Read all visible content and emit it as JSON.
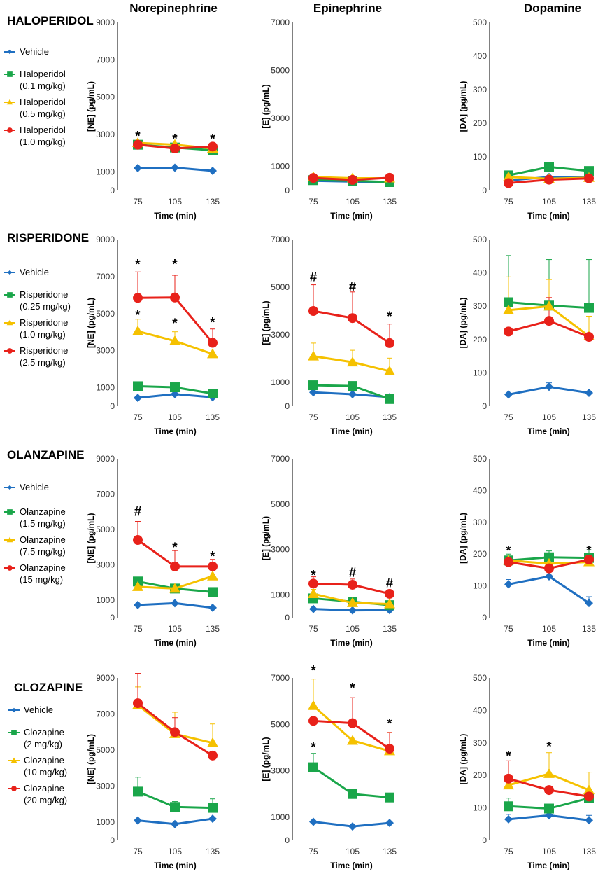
{
  "columns": [
    "Norepinephrine",
    "Epinephrine",
    "Dopamine"
  ],
  "colors": {
    "Vehicle": "#1f6fc1",
    "Low": "#1aa64a",
    "Mid": "#f5c100",
    "High": "#e8211a"
  },
  "markers": [
    "diamond",
    "square",
    "triangle",
    "circle"
  ],
  "xlabel": "Time (min)",
  "panels": [
    {
      "drug": "HALOPERIDOL",
      "legend": [
        {
          "line1": "Vehicle",
          "line2": ""
        },
        {
          "line1": "Haloperidol",
          "line2": "(0.1 mg/kg)"
        },
        {
          "line1": "Haloperidol",
          "line2": "(0.5 mg/kg)"
        },
        {
          "line1": "Haloperidol",
          "line2": "(1.0 mg/kg)"
        }
      ]
    },
    {
      "drug": "RISPERIDONE",
      "legend": [
        {
          "line1": "Vehicle",
          "line2": ""
        },
        {
          "line1": "Risperidone",
          "line2": "(0.25 mg/kg)"
        },
        {
          "line1": "Risperidone",
          "line2": "(1.0 mg/kg)"
        },
        {
          "line1": "Risperidone",
          "line2": "(2.5 mg/kg)"
        }
      ]
    },
    {
      "drug": "OLANZAPINE",
      "legend": [
        {
          "line1": "Vehicle",
          "line2": ""
        },
        {
          "line1": "Olanzapine",
          "line2": "(1.5 mg/kg)"
        },
        {
          "line1": "Olanzapine",
          "line2": "(7.5 mg/kg)"
        },
        {
          "line1": "Olanzapine",
          "line2": "(15 mg/kg)"
        }
      ]
    },
    {
      "drug": "CLOZAPINE",
      "legend": [
        {
          "line1": "Vehicle",
          "line2": ""
        },
        {
          "line1": "Clozapine",
          "line2": "(2 mg/kg)"
        },
        {
          "line1": "Clozapine",
          "line2": "(10 mg/kg)"
        },
        {
          "line1": "Clozapine",
          "line2": "(20 mg/kg)"
        }
      ]
    }
  ],
  "chart_data": [
    {
      "type": "line",
      "drug": "Haloperidol",
      "analyte": "Norepinephrine",
      "ylabel": "[NE] (pg/mL)",
      "xlabel": "Time (min)",
      "x": [
        75,
        105,
        135
      ],
      "ylim": [
        0,
        9000
      ],
      "yticks": [
        0,
        1000,
        3000,
        5000,
        7000,
        9000
      ],
      "series": [
        {
          "name": "Vehicle",
          "values": [
            1200,
            1220,
            1050
          ],
          "err": [
            0,
            0,
            0
          ]
        },
        {
          "name": "Haloperidol (0.1 mg/kg)",
          "values": [
            2450,
            2300,
            2150
          ],
          "err": [
            0,
            0,
            0
          ]
        },
        {
          "name": "Haloperidol (0.5 mg/kg)",
          "values": [
            2550,
            2450,
            2250
          ],
          "err": [
            0,
            0,
            0
          ]
        },
        {
          "name": "Haloperidol (1.0 mg/kg)",
          "values": [
            2450,
            2250,
            2350
          ],
          "err": [
            0,
            0,
            0
          ]
        }
      ],
      "annotations": [
        {
          "x": 75,
          "text": "*",
          "y": 2950
        },
        {
          "x": 105,
          "text": "*",
          "y": 2800
        },
        {
          "x": 135,
          "text": "*",
          "y": 2800
        }
      ]
    },
    {
      "type": "line",
      "drug": "Haloperidol",
      "analyte": "Epinephrine",
      "ylabel": "[E] (pg/mL)",
      "xlabel": "Time (min)",
      "x": [
        75,
        105,
        135
      ],
      "ylim": [
        0,
        7000
      ],
      "yticks": [
        0,
        1000,
        3000,
        5000,
        7000
      ],
      "series": [
        {
          "name": "Vehicle",
          "values": [
            400,
            370,
            330
          ],
          "err": [
            0,
            0,
            0
          ]
        },
        {
          "name": "Haloperidol (0.1 mg/kg)",
          "values": [
            430,
            400,
            350
          ],
          "err": [
            0,
            0,
            0
          ]
        },
        {
          "name": "Haloperidol (0.5 mg/kg)",
          "values": [
            560,
            510,
            510
          ],
          "err": [
            0,
            0,
            0
          ]
        },
        {
          "name": "Haloperidol (1.0 mg/kg)",
          "values": [
            520,
            440,
            530
          ],
          "err": [
            0,
            0,
            0
          ]
        }
      ],
      "annotations": []
    },
    {
      "type": "line",
      "drug": "Haloperidol",
      "analyte": "Dopamine",
      "ylabel": "[DA] (pg/mL)",
      "xlabel": "Time (min)",
      "x": [
        75,
        105,
        135
      ],
      "ylim": [
        0,
        500
      ],
      "yticks": [
        0,
        100,
        200,
        300,
        400,
        500
      ],
      "series": [
        {
          "name": "Vehicle",
          "values": [
            30,
            40,
            40
          ],
          "err": [
            0,
            0,
            0
          ]
        },
        {
          "name": "Haloperidol (0.1 mg/kg)",
          "values": [
            45,
            70,
            58
          ],
          "err": [
            0,
            0,
            0
          ]
        },
        {
          "name": "Haloperidol (0.5 mg/kg)",
          "values": [
            40,
            35,
            38
          ],
          "err": [
            0,
            0,
            0
          ]
        },
        {
          "name": "Haloperidol (1.0 mg/kg)",
          "values": [
            22,
            32,
            36
          ],
          "err": [
            0,
            0,
            0
          ]
        }
      ],
      "annotations": []
    },
    {
      "type": "line",
      "drug": "Risperidone",
      "analyte": "Norepinephrine",
      "ylabel": "[NE] (pg/mL)",
      "xlabel": "Time (min)",
      "x": [
        75,
        105,
        135
      ],
      "ylim": [
        0,
        9000
      ],
      "yticks": [
        0,
        1000,
        3000,
        5000,
        7000,
        9000
      ],
      "series": [
        {
          "name": "Vehicle",
          "values": [
            450,
            650,
            480
          ],
          "err": [
            0,
            0,
            0
          ]
        },
        {
          "name": "Risperidone (0.25 mg/kg)",
          "values": [
            1080,
            1020,
            680
          ],
          "err": [
            200,
            200,
            0
          ]
        },
        {
          "name": "Risperidone (1.0 mg/kg)",
          "values": [
            4050,
            3520,
            2820
          ],
          "err": [
            650,
            500,
            0
          ]
        },
        {
          "name": "Risperidone (2.5 mg/kg)",
          "values": [
            5850,
            5870,
            3420
          ],
          "err": [
            1400,
            1200,
            750
          ]
        }
      ],
      "annotations": [
        {
          "x": 75,
          "text": "*",
          "y": 7700
        },
        {
          "x": 105,
          "text": "*",
          "y": 7700
        },
        {
          "x": 135,
          "text": "*",
          "y": 4550
        },
        {
          "x": 75,
          "text": "*",
          "y": 4950
        },
        {
          "x": 105,
          "text": "*",
          "y": 4500
        }
      ]
    },
    {
      "type": "line",
      "drug": "Risperidone",
      "analyte": "Epinephrine",
      "ylabel": "[E] (pg/mL)",
      "xlabel": "Time (min)",
      "x": [
        75,
        105,
        135
      ],
      "ylim": [
        0,
        7000
      ],
      "yticks": [
        0,
        1000,
        3000,
        5000,
        7000
      ],
      "series": [
        {
          "name": "Vehicle",
          "values": [
            580,
            500,
            380
          ],
          "err": [
            0,
            0,
            0
          ]
        },
        {
          "name": "Risperidone (0.25 mg/kg)",
          "values": [
            880,
            850,
            300
          ],
          "err": [
            0,
            0,
            0
          ]
        },
        {
          "name": "Risperidone (1.0 mg/kg)",
          "values": [
            2100,
            1850,
            1470
          ],
          "err": [
            550,
            500,
            550
          ]
        },
        {
          "name": "Risperidone (2.5 mg/kg)",
          "values": [
            4000,
            3700,
            2650
          ],
          "err": [
            1100,
            1100,
            800
          ]
        }
      ],
      "annotations": [
        {
          "x": 75,
          "text": "#",
          "y": 5450
        },
        {
          "x": 105,
          "text": "#",
          "y": 5050
        },
        {
          "x": 135,
          "text": "*",
          "y": 3800
        }
      ]
    },
    {
      "type": "line",
      "drug": "Risperidone",
      "analyte": "Dopamine",
      "ylabel": "[DA] (pg/mL)",
      "xlabel": "Time (min)",
      "x": [
        75,
        105,
        135
      ],
      "ylim": [
        0,
        500
      ],
      "yticks": [
        0,
        100,
        200,
        300,
        400,
        500
      ],
      "series": [
        {
          "name": "Vehicle",
          "values": [
            35,
            58,
            40
          ],
          "err": [
            0,
            12,
            0
          ]
        },
        {
          "name": "Risperidone (0.25 mg/kg)",
          "values": [
            312,
            302,
            295
          ],
          "err": [
            140,
            138,
            145
          ]
        },
        {
          "name": "Risperidone (1.0 mg/kg)",
          "values": [
            288,
            300,
            210
          ],
          "err": [
            100,
            80,
            60
          ]
        },
        {
          "name": "Risperidone (2.5 mg/kg)",
          "values": [
            224,
            256,
            208
          ],
          "err": [
            0,
            70,
            0
          ]
        }
      ],
      "annotations": []
    },
    {
      "type": "line",
      "drug": "Olanzapine",
      "analyte": "Norepinephrine",
      "ylabel": "[NE] (pg/mL)",
      "xlabel": "Time (min)",
      "x": [
        75,
        105,
        135
      ],
      "ylim": [
        0,
        9000
      ],
      "yticks": [
        0,
        1000,
        3000,
        5000,
        7000,
        9000
      ],
      "series": [
        {
          "name": "Vehicle",
          "values": [
            720,
            820,
            560
          ],
          "err": [
            0,
            0,
            0
          ]
        },
        {
          "name": "Olanzapine (1.5 mg/kg)",
          "values": [
            2050,
            1650,
            1450
          ],
          "err": [
            250,
            250,
            0
          ]
        },
        {
          "name": "Olanzapine (7.5 mg/kg)",
          "values": [
            1750,
            1650,
            2350
          ],
          "err": [
            0,
            0,
            0
          ]
        },
        {
          "name": "Olanzapine (15 mg/kg)",
          "values": [
            4400,
            2900,
            2900
          ],
          "err": [
            1050,
            900,
            400
          ]
        }
      ],
      "annotations": [
        {
          "x": 75,
          "text": "#",
          "y": 6050
        },
        {
          "x": 105,
          "text": "*",
          "y": 4000
        },
        {
          "x": 135,
          "text": "*",
          "y": 3500
        }
      ]
    },
    {
      "type": "line",
      "drug": "Olanzapine",
      "analyte": "Epinephrine",
      "ylabel": "[E] (pg/mL)",
      "xlabel": "Time (min)",
      "x": [
        75,
        105,
        135
      ],
      "ylim": [
        0,
        7000
      ],
      "yticks": [
        0,
        1000,
        3000,
        5000,
        7000
      ],
      "series": [
        {
          "name": "Vehicle",
          "values": [
            380,
            320,
            330
          ],
          "err": [
            0,
            0,
            0
          ]
        },
        {
          "name": "Olanzapine (1.5 mg/kg)",
          "values": [
            850,
            700,
            550
          ],
          "err": [
            0,
            0,
            0
          ]
        },
        {
          "name": "Olanzapine (7.5 mg/kg)",
          "values": [
            1050,
            650,
            600
          ],
          "err": [
            200,
            150,
            0
          ]
        },
        {
          "name": "Olanzapine (15 mg/kg)",
          "values": [
            1500,
            1450,
            1050
          ],
          "err": [
            300,
            250,
            0
          ]
        }
      ],
      "annotations": [
        {
          "x": 75,
          "text": "*",
          "y": 1900
        },
        {
          "x": 105,
          "text": "#",
          "y": 2000
        },
        {
          "x": 135,
          "text": "#",
          "y": 1550
        }
      ]
    },
    {
      "type": "line",
      "drug": "Olanzapine",
      "analyte": "Dopamine",
      "ylabel": "[DA] (pg/mL)",
      "xlabel": "Time (min)",
      "x": [
        75,
        105,
        135
      ],
      "ylim": [
        0,
        500
      ],
      "yticks": [
        0,
        100,
        200,
        300,
        400,
        500
      ],
      "series": [
        {
          "name": "Vehicle",
          "values": [
            105,
            130,
            46
          ],
          "err": [
            15,
            0,
            20
          ]
        },
        {
          "name": "Olanzapine (1.5 mg/kg)",
          "values": [
            180,
            190,
            188
          ],
          "err": [
            20,
            20,
            25
          ]
        },
        {
          "name": "Olanzapine (7.5 mg/kg)",
          "values": [
            180,
            170,
            175
          ],
          "err": [
            0,
            0,
            0
          ]
        },
        {
          "name": "Olanzapine (15 mg/kg)",
          "values": [
            175,
            155,
            183
          ],
          "err": [
            0,
            0,
            0
          ]
        }
      ],
      "annotations": [
        {
          "x": 75,
          "text": "*",
          "y": 213
        },
        {
          "x": 135,
          "text": "*",
          "y": 213
        }
      ]
    },
    {
      "type": "line",
      "drug": "Clozapine",
      "analyte": "Norepinephrine",
      "ylabel": "[NE] (pg/mL)",
      "xlabel": "Time (min)",
      "x": [
        75,
        105,
        135
      ],
      "ylim": [
        0,
        9000
      ],
      "yticks": [
        0,
        1000,
        3000,
        5000,
        7000,
        9000
      ],
      "series": [
        {
          "name": "Vehicle",
          "values": [
            1100,
            900,
            1200
          ],
          "err": [
            0,
            0,
            0
          ]
        },
        {
          "name": "Clozapine (2 mg/kg)",
          "values": [
            2700,
            1850,
            1800
          ],
          "err": [
            800,
            300,
            500
          ]
        },
        {
          "name": "Clozapine (10 mg/kg)",
          "values": [
            7500,
            5900,
            5400
          ],
          "err": [
            1000,
            1200,
            1050
          ]
        },
        {
          "name": "Clozapine (20 mg/kg)",
          "values": [
            7600,
            6000,
            4700
          ],
          "err": [
            1650,
            800,
            0
          ]
        }
      ],
      "annotations": []
    },
    {
      "type": "line",
      "drug": "Clozapine",
      "analyte": "Epinephrine",
      "ylabel": "[E] (pg/mL)",
      "xlabel": "Time (min)",
      "x": [
        75,
        105,
        135
      ],
      "ylim": [
        0,
        7000
      ],
      "yticks": [
        0,
        1000,
        3000,
        5000,
        7000
      ],
      "series": [
        {
          "name": "Vehicle",
          "values": [
            800,
            600,
            750
          ],
          "err": [
            0,
            0,
            0
          ]
        },
        {
          "name": "Clozapine (2 mg/kg)",
          "values": [
            3150,
            2000,
            1850
          ],
          "err": [
            600,
            0,
            0
          ]
        },
        {
          "name": "Clozapine (10 mg/kg)",
          "values": [
            5800,
            4300,
            3850
          ],
          "err": [
            1150,
            0,
            800
          ]
        },
        {
          "name": "Clozapine (20 mg/kg)",
          "values": [
            5150,
            5050,
            3950
          ],
          "err": [
            0,
            1100,
            700
          ]
        }
      ],
      "annotations": [
        {
          "x": 75,
          "text": "*",
          "y": 7350
        },
        {
          "x": 105,
          "text": "*",
          "y": 6600
        },
        {
          "x": 135,
          "text": "*",
          "y": 5050
        },
        {
          "x": 75,
          "text": "*",
          "y": 4050
        }
      ]
    },
    {
      "type": "line",
      "drug": "Clozapine",
      "analyte": "Dopamine",
      "ylabel": "[DA] (pg/mL)",
      "xlabel": "Time (min)",
      "x": [
        75,
        105,
        135
      ],
      "ylim": [
        0,
        500
      ],
      "yticks": [
        0,
        100,
        200,
        300,
        400,
        500
      ],
      "series": [
        {
          "name": "Vehicle",
          "values": [
            65,
            77,
            62
          ],
          "err": [
            15,
            10,
            15
          ]
        },
        {
          "name": "Clozapine (2 mg/kg)",
          "values": [
            105,
            98,
            130
          ],
          "err": [
            25,
            0,
            0
          ]
        },
        {
          "name": "Clozapine (10 mg/kg)",
          "values": [
            170,
            205,
            155
          ],
          "err": [
            0,
            65,
            55
          ]
        },
        {
          "name": "Clozapine (20 mg/kg)",
          "values": [
            190,
            155,
            135
          ],
          "err": [
            55,
            0,
            0
          ]
        }
      ],
      "annotations": [
        {
          "x": 75,
          "text": "*",
          "y": 262
        },
        {
          "x": 105,
          "text": "*",
          "y": 290
        }
      ]
    }
  ]
}
